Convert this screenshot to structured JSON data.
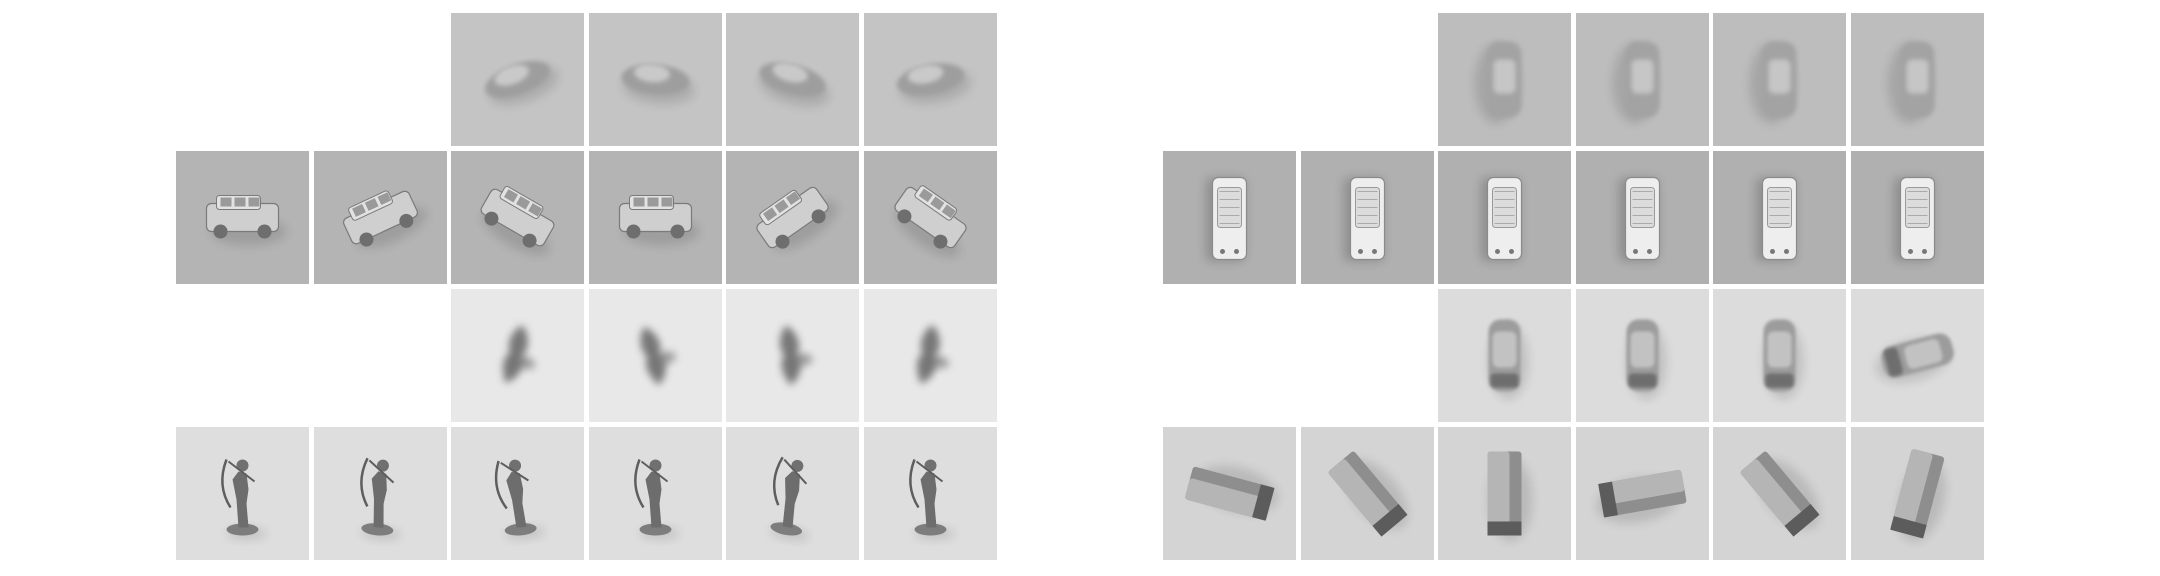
{
  "panels": [
    {
      "name": "left-panel",
      "rows": [
        {
          "kind": "predicted",
          "offset": 2,
          "count": 4,
          "object": "car",
          "tone": "#c4c4c4"
        },
        {
          "kind": "real",
          "offset": 0,
          "count": 6,
          "object": "suv",
          "tone": "#b4b4b4"
        },
        {
          "kind": "predicted",
          "offset": 2,
          "count": 4,
          "object": "figurine-blur",
          "tone": "#e8e8e8"
        },
        {
          "kind": "real",
          "offset": 0,
          "count": 6,
          "object": "archer-figurine",
          "tone": "#dedede"
        }
      ]
    },
    {
      "name": "right-panel",
      "rows": [
        {
          "kind": "predicted",
          "offset": 2,
          "count": 4,
          "object": "car-topdown",
          "tone": "#bdbdbd"
        },
        {
          "kind": "real",
          "offset": 0,
          "count": 6,
          "object": "suv-topdown",
          "tone": "#b0b0b0"
        },
        {
          "kind": "predicted",
          "offset": 2,
          "count": 4,
          "object": "car-rotating",
          "tone": "#dcdcdc"
        },
        {
          "kind": "real",
          "offset": 0,
          "count": 6,
          "object": "block",
          "tone": "#d4d4d4"
        }
      ]
    }
  ]
}
